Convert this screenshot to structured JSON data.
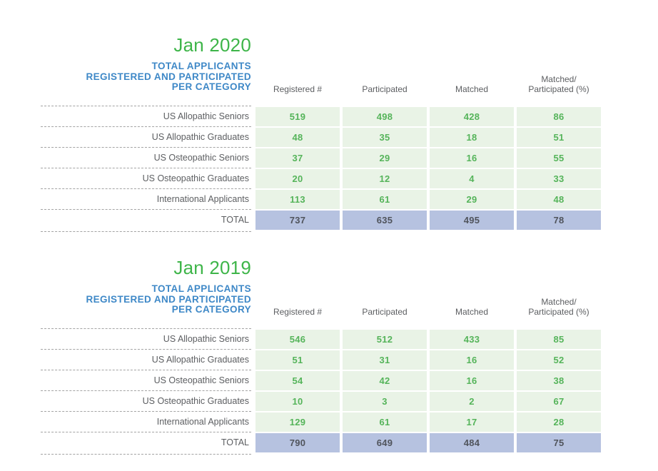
{
  "colors": {
    "title-green": "#3eb549",
    "heading-blue": "#3e88c7",
    "cell-green": "#e9f3e6",
    "value-green": "#55b45a",
    "total-blue": "#b6c2e0",
    "total-text": "#50545c",
    "label-gray": "#5c5e61",
    "dash-gray": "#a3a3a3"
  },
  "tables": [
    {
      "title": "Jan 2020",
      "heading": "TOTAL APPLICANTS\nREGISTERED AND PARTICIPATED\nPER CATEGORY",
      "columns": [
        "Registered #",
        "Participated",
        "Matched",
        "Matched/\nParticipated (%)"
      ],
      "rows": [
        {
          "label": "US Allopathic Seniors",
          "values": [
            "519",
            "498",
            "428",
            "86"
          ],
          "is_total": false
        },
        {
          "label": "US Allopathic Graduates",
          "values": [
            "48",
            "35",
            "18",
            "51"
          ],
          "is_total": false
        },
        {
          "label": "US Osteopathic Seniors",
          "values": [
            "37",
            "29",
            "16",
            "55"
          ],
          "is_total": false
        },
        {
          "label": "US Osteopathic Graduates",
          "values": [
            "20",
            "12",
            "4",
            "33"
          ],
          "is_total": false
        },
        {
          "label": "International Applicants",
          "values": [
            "113",
            "61",
            "29",
            "48"
          ],
          "is_total": false
        },
        {
          "label": "TOTAL",
          "values": [
            "737",
            "635",
            "495",
            "78"
          ],
          "is_total": true
        }
      ]
    },
    {
      "title": "Jan 2019",
      "heading": "TOTAL APPLICANTS\nREGISTERED AND PARTICIPATED\nPER CATEGORY",
      "columns": [
        "Registered #",
        "Participated",
        "Matched",
        "Matched/\nParticipated (%)"
      ],
      "rows": [
        {
          "label": "US Allopathic Seniors",
          "values": [
            "546",
            "512",
            "433",
            "85"
          ],
          "is_total": false
        },
        {
          "label": "US Allopathic Graduates",
          "values": [
            "51",
            "31",
            "16",
            "52"
          ],
          "is_total": false
        },
        {
          "label": "US Osteopathic Seniors",
          "values": [
            "54",
            "42",
            "16",
            "38"
          ],
          "is_total": false
        },
        {
          "label": "US Osteopathic Graduates",
          "values": [
            "10",
            "3",
            "2",
            "67"
          ],
          "is_total": false
        },
        {
          "label": "International Applicants",
          "values": [
            "129",
            "61",
            "17",
            "28"
          ],
          "is_total": false
        },
        {
          "label": "TOTAL",
          "values": [
            "790",
            "649",
            "484",
            "75"
          ],
          "is_total": true
        }
      ]
    }
  ]
}
